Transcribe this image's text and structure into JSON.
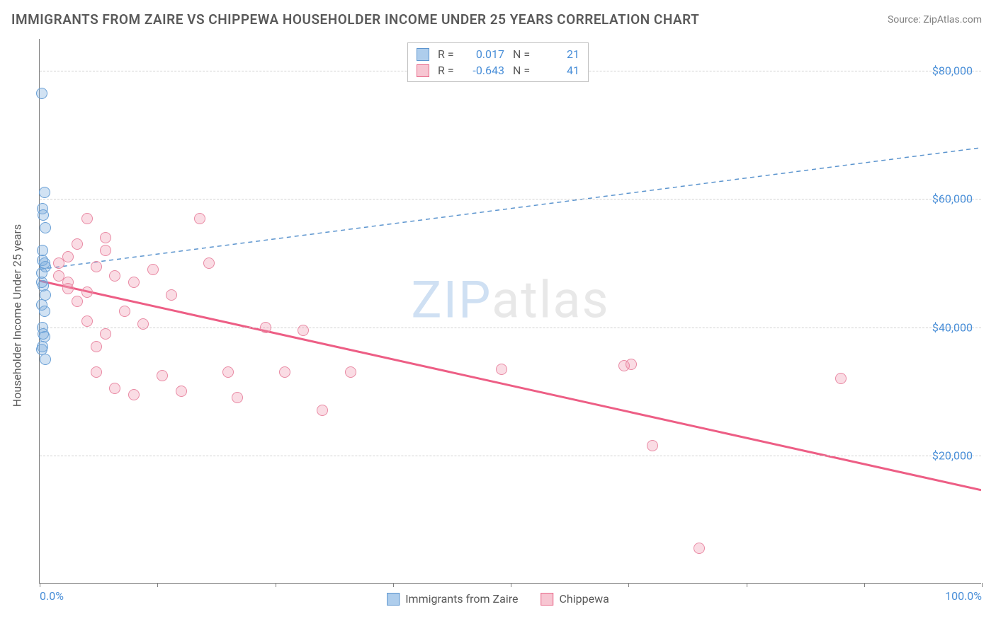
{
  "title": "IMMIGRANTS FROM ZAIRE VS CHIPPEWA HOUSEHOLDER INCOME UNDER 25 YEARS CORRELATION CHART",
  "source": "Source: ZipAtlas.com",
  "watermark": {
    "zip": "ZIP",
    "atlas": "atlas"
  },
  "chart": {
    "type": "scatter",
    "background_color": "#ffffff",
    "grid_color": "#d0d0d0",
    "axis_color": "#808080",
    "tick_label_color": "#4a8fd8",
    "label_color": "#5a5a5a",
    "label_fontsize": 16,
    "title_fontsize": 19,
    "marker_radius": 8,
    "xlim": [
      0,
      100
    ],
    "ylim": [
      0,
      85000
    ],
    "xticks": [
      0,
      12.5,
      25,
      37.5,
      50,
      62.5,
      75,
      87.5,
      100
    ],
    "xtick_labels": {
      "0": "0.0%",
      "100": "100.0%"
    },
    "yticks": [
      20000,
      40000,
      60000,
      80000
    ],
    "ytick_labels": [
      "$20,000",
      "$40,000",
      "$60,000",
      "$80,000"
    ],
    "ylabel": "Householder Income Under 25 years",
    "series": [
      {
        "id": "zaire",
        "name": "Immigrants from Zaire",
        "swatch_fill": "#aecdec",
        "swatch_border": "#5b94ce",
        "point_fill": "rgba(122,172,222,0.35)",
        "point_border": "#6aa0d6",
        "R": "0.017",
        "N": "21",
        "trend": {
          "y0": 49000,
          "y100": 68000,
          "color": "#5b94ce",
          "width": 1.5,
          "dash": "6,5"
        },
        "points": [
          [
            0.2,
            76500
          ],
          [
            0.5,
            61000
          ],
          [
            0.3,
            58500
          ],
          [
            0.6,
            55500
          ],
          [
            0.4,
            57500
          ],
          [
            0.2,
            48500
          ],
          [
            0.4,
            46500
          ],
          [
            0.3,
            50500
          ],
          [
            0.6,
            49500
          ],
          [
            0.2,
            43500
          ],
          [
            0.5,
            42500
          ],
          [
            0.3,
            40000
          ],
          [
            0.5,
            38500
          ],
          [
            0.2,
            36500
          ],
          [
            0.6,
            35000
          ],
          [
            0.3,
            52000
          ],
          [
            0.5,
            50000
          ],
          [
            0.2,
            47000
          ],
          [
            0.6,
            45000
          ],
          [
            0.4,
            39000
          ],
          [
            0.3,
            37000
          ]
        ]
      },
      {
        "id": "chippewa",
        "name": "Chippewa",
        "swatch_fill": "#f7c6d2",
        "swatch_border": "#e86a8a",
        "point_fill": "rgba(240,140,166,0.30)",
        "point_border": "#e98aa4",
        "R": "-0.643",
        "N": "41",
        "trend": {
          "y0": 47200,
          "y100": 14500,
          "color": "#ed5e85",
          "width": 3,
          "dash": ""
        },
        "points": [
          [
            5,
            57000
          ],
          [
            7,
            54000
          ],
          [
            4,
            53000
          ],
          [
            3,
            51000
          ],
          [
            6,
            49500
          ],
          [
            2,
            50000
          ],
          [
            8,
            48000
          ],
          [
            3,
            47000
          ],
          [
            5,
            45500
          ],
          [
            7,
            52000
          ],
          [
            10,
            47000
          ],
          [
            12,
            49000
          ],
          [
            14,
            45000
          ],
          [
            9,
            42500
          ],
          [
            11,
            40500
          ],
          [
            6,
            33000
          ],
          [
            8,
            30500
          ],
          [
            10,
            29500
          ],
          [
            13,
            32500
          ],
          [
            15,
            30000
          ],
          [
            17,
            57000
          ],
          [
            18,
            50000
          ],
          [
            20,
            33000
          ],
          [
            21,
            29000
          ],
          [
            24,
            40000
          ],
          [
            26,
            33000
          ],
          [
            28,
            39500
          ],
          [
            30,
            27000
          ],
          [
            33,
            33000
          ],
          [
            49,
            33500
          ],
          [
            62,
            34000
          ],
          [
            62.8,
            34200
          ],
          [
            65,
            21500
          ],
          [
            70,
            5500
          ],
          [
            85,
            32000
          ],
          [
            4,
            44000
          ],
          [
            6,
            37000
          ],
          [
            2,
            48000
          ],
          [
            3,
            46000
          ],
          [
            5,
            41000
          ],
          [
            7,
            39000
          ]
        ]
      }
    ],
    "legend_bottom": [
      {
        "series": "zaire"
      },
      {
        "series": "chippewa"
      }
    ]
  }
}
